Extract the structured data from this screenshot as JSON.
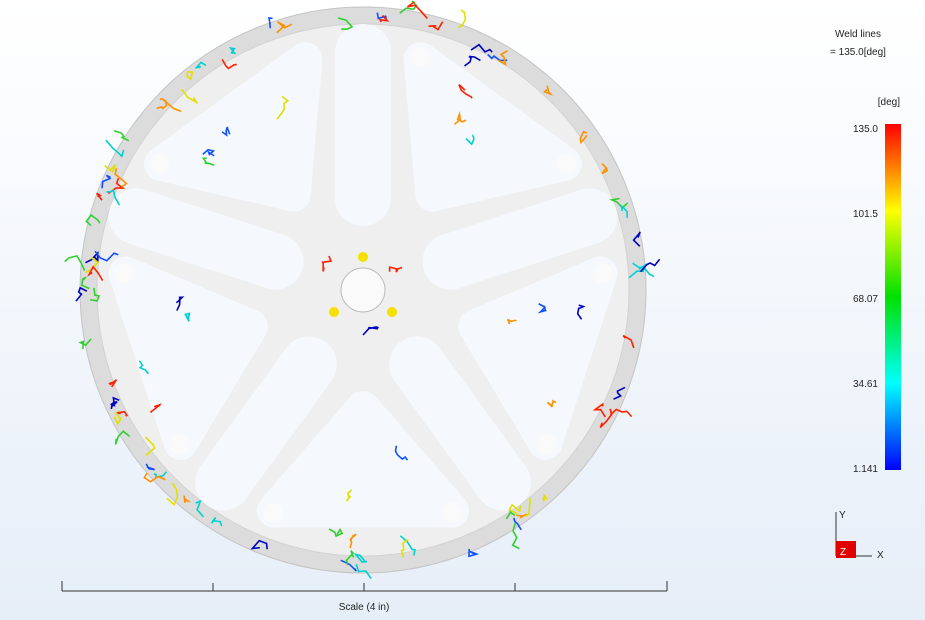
{
  "result": {
    "title": "Weld lines",
    "value": "= 135.0[deg]"
  },
  "legend": {
    "unit": "[deg]",
    "ticks": [
      "135.0",
      "101.5",
      "68.07",
      "34.61",
      "1.141"
    ]
  },
  "triad": {
    "y": "Y",
    "z": "Z",
    "x": "X"
  },
  "scale": {
    "label": "Scale (4 in)"
  }
}
